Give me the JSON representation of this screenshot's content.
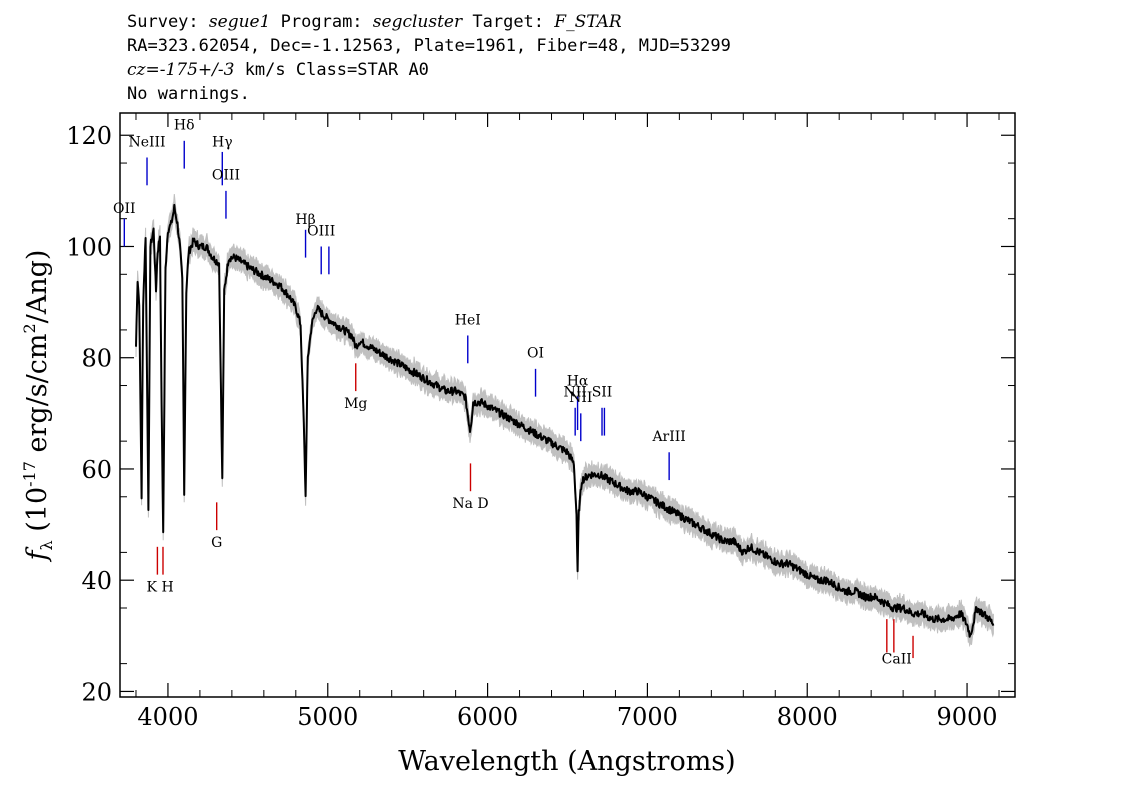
{
  "header": {
    "survey_label": "Survey:",
    "survey": "segue1",
    "program_label": "Program:",
    "program": "segcluster",
    "target_label": "Target:",
    "target": "F_STAR",
    "line2": "RA=323.62054, Dec=-1.12563, Plate=1961, Fiber=48, MJD=53299",
    "cz": "cz=-175+/-3",
    "cz_rest": " km/s Class=STAR A0",
    "line4": "No warnings."
  },
  "chart_data": {
    "type": "line",
    "xlabel": "Wavelength (Angstroms)",
    "ylabel": "f_λ (10^-17 erg/s/cm^2/Ang)",
    "xlim": [
      3700,
      9300
    ],
    "ylim": [
      19,
      124
    ],
    "x_ticks": [
      4000,
      5000,
      6000,
      7000,
      8000,
      9000
    ],
    "y_ticks": [
      20,
      40,
      60,
      80,
      100,
      120
    ],
    "colors": {
      "flux": "#000000",
      "error": "#c0c0c0",
      "emission": "#0000cc",
      "absorption": "#cc0000"
    },
    "series": [
      {
        "points": [
          [
            3800,
            82
          ],
          [
            3810,
            94
          ],
          [
            3820,
            90
          ],
          [
            3835,
            55
          ],
          [
            3845,
            90
          ],
          [
            3860,
            102
          ],
          [
            3878,
            52
          ],
          [
            3890,
            100
          ],
          [
            3910,
            103
          ],
          [
            3925,
            92
          ],
          [
            3935,
            99
          ],
          [
            3950,
            102
          ],
          [
            3960,
            72
          ],
          [
            3970,
            49
          ],
          [
            3985,
            96
          ],
          [
            4000,
            103
          ],
          [
            4020,
            104
          ],
          [
            4040,
            107
          ],
          [
            4060,
            104
          ],
          [
            4075,
            100
          ],
          [
            4090,
            94
          ],
          [
            4102,
            56
          ],
          [
            4115,
            92
          ],
          [
            4130,
            99
          ],
          [
            4160,
            101
          ],
          [
            4200,
            100
          ],
          [
            4240,
            100
          ],
          [
            4280,
            98
          ],
          [
            4320,
            97
          ],
          [
            4340,
            58
          ],
          [
            4352,
            92
          ],
          [
            4380,
            98
          ],
          [
            4420,
            98
          ],
          [
            4470,
            97
          ],
          [
            4520,
            96
          ],
          [
            4580,
            95
          ],
          [
            4640,
            94
          ],
          [
            4700,
            93
          ],
          [
            4760,
            91
          ],
          [
            4800,
            89
          ],
          [
            4830,
            86
          ],
          [
            4850,
            68
          ],
          [
            4861,
            55
          ],
          [
            4875,
            80
          ],
          [
            4900,
            86
          ],
          [
            4930,
            89
          ],
          [
            4960,
            88
          ],
          [
            5000,
            87
          ],
          [
            5050,
            86
          ],
          [
            5100,
            85
          ],
          [
            5150,
            84
          ],
          [
            5175,
            82
          ],
          [
            5200,
            83
          ],
          [
            5260,
            82
          ],
          [
            5320,
            81
          ],
          [
            5380,
            80
          ],
          [
            5440,
            79
          ],
          [
            5500,
            78
          ],
          [
            5560,
            77
          ],
          [
            5620,
            76
          ],
          [
            5680,
            75
          ],
          [
            5740,
            74
          ],
          [
            5800,
            74
          ],
          [
            5860,
            73
          ],
          [
            5890,
            67
          ],
          [
            5900,
            69
          ],
          [
            5910,
            72
          ],
          [
            5960,
            72
          ],
          [
            6020,
            71
          ],
          [
            6080,
            70
          ],
          [
            6140,
            69
          ],
          [
            6200,
            68
          ],
          [
            6260,
            67
          ],
          [
            6320,
            66
          ],
          [
            6380,
            65
          ],
          [
            6440,
            64
          ],
          [
            6500,
            63
          ],
          [
            6540,
            61
          ],
          [
            6556,
            52
          ],
          [
            6563,
            41
          ],
          [
            6570,
            52
          ],
          [
            6590,
            58
          ],
          [
            6640,
            59
          ],
          [
            6700,
            59
          ],
          [
            6760,
            58
          ],
          [
            6820,
            57
          ],
          [
            6880,
            56
          ],
          [
            6940,
            56
          ],
          [
            7000,
            55
          ],
          [
            7060,
            54
          ],
          [
            7120,
            53
          ],
          [
            7180,
            52
          ],
          [
            7240,
            51
          ],
          [
            7300,
            50
          ],
          [
            7360,
            49
          ],
          [
            7420,
            48
          ],
          [
            7480,
            47
          ],
          [
            7540,
            47
          ],
          [
            7600,
            45
          ],
          [
            7640,
            46
          ],
          [
            7700,
            45
          ],
          [
            7760,
            44
          ],
          [
            7820,
            43
          ],
          [
            7880,
            43
          ],
          [
            7940,
            42
          ],
          [
            8000,
            41
          ],
          [
            8060,
            40
          ],
          [
            8120,
            40
          ],
          [
            8180,
            39
          ],
          [
            8240,
            38
          ],
          [
            8300,
            38
          ],
          [
            8360,
            37
          ],
          [
            8420,
            37
          ],
          [
            8480,
            36
          ],
          [
            8540,
            35
          ],
          [
            8600,
            35
          ],
          [
            8660,
            34
          ],
          [
            8720,
            34
          ],
          [
            8780,
            33
          ],
          [
            8840,
            33
          ],
          [
            8900,
            33
          ],
          [
            8960,
            34
          ],
          [
            9000,
            32
          ],
          [
            9020,
            30
          ],
          [
            9060,
            35
          ],
          [
            9100,
            34
          ],
          [
            9140,
            33
          ],
          [
            9165,
            32
          ]
        ]
      }
    ],
    "line_markers": [
      {
        "label": "OII",
        "wavelength": 3727,
        "kind": "emission",
        "y_top": 105,
        "y_bot": 100,
        "label_y": 106
      },
      {
        "label": "NeIII",
        "wavelength": 3869,
        "kind": "emission",
        "y_top": 116,
        "y_bot": 111,
        "label_y": 118
      },
      {
        "label": "Hδ",
        "wavelength": 4102,
        "kind": "emission",
        "y_top": 119,
        "y_bot": 114,
        "label_y": 121
      },
      {
        "label": "Hγ",
        "wavelength": 4340,
        "kind": "emission",
        "y_top": 117,
        "y_bot": 111,
        "label_y": 118
      },
      {
        "label": "OIII",
        "wavelength": 4363,
        "kind": "emission",
        "y_top": 110,
        "y_bot": 105,
        "label_y": 112
      },
      {
        "label": "Hβ",
        "wavelength": 4861,
        "kind": "emission",
        "y_top": 103,
        "y_bot": 98,
        "label_y": 104
      },
      {
        "label": "OIII",
        "wavelength": 4959,
        "kind": "emission",
        "y_top": 100,
        "y_bot": 95,
        "label_y": 102
      },
      {
        "label": "",
        "wavelength": 5007,
        "kind": "emission",
        "y_top": 100,
        "y_bot": 95,
        "label_y": 0
      },
      {
        "label": "HeI",
        "wavelength": 5876,
        "kind": "emission",
        "y_top": 84,
        "y_bot": 79,
        "label_y": 86
      },
      {
        "label": "OI",
        "wavelength": 6300,
        "kind": "emission",
        "y_top": 78,
        "y_bot": 73,
        "label_y": 80
      },
      {
        "label": "NII",
        "wavelength": 6548,
        "kind": "emission",
        "y_top": 71,
        "y_bot": 66,
        "label_y": 73
      },
      {
        "label": "Hα",
        "wavelength": 6563,
        "kind": "emission",
        "y_top": 73,
        "y_bot": 67,
        "label_y": 75
      },
      {
        "label": "NII",
        "wavelength": 6583,
        "kind": "emission",
        "y_top": 70,
        "y_bot": 65,
        "label_y": 72
      },
      {
        "label": "SII",
        "wavelength": 6716,
        "kind": "emission",
        "y_top": 71,
        "y_bot": 66,
        "label_y": 73
      },
      {
        "label": "",
        "wavelength": 6731,
        "kind": "emission",
        "y_top": 71,
        "y_bot": 66,
        "label_y": 0
      },
      {
        "label": "ArIII",
        "wavelength": 7136,
        "kind": "emission",
        "y_top": 63,
        "y_bot": 58,
        "label_y": 65
      },
      {
        "label": "",
        "wavelength": 3934,
        "kind": "absorption",
        "y_top": 46,
        "y_bot": 41,
        "label_y": 0
      },
      {
        "label": "",
        "wavelength": 3969,
        "kind": "absorption",
        "y_top": 46,
        "y_bot": 41,
        "label_y": 0
      },
      {
        "label": "K H",
        "wavelength": 3951,
        "kind": "label",
        "y_top": 0,
        "y_bot": 0,
        "label_y": 38
      },
      {
        "label": "G",
        "wavelength": 4305,
        "kind": "absorption",
        "y_top": 54,
        "y_bot": 49,
        "label_y": 46
      },
      {
        "label": "Mg",
        "wavelength": 5175,
        "kind": "absorption",
        "y_top": 79,
        "y_bot": 74,
        "label_y": 71
      },
      {
        "label": "Na D",
        "wavelength": 5893,
        "kind": "absorption",
        "y_top": 61,
        "y_bot": 56,
        "label_y": 53
      },
      {
        "label": "",
        "wavelength": 8498,
        "kind": "absorption",
        "y_top": 33,
        "y_bot": 27,
        "label_y": 0
      },
      {
        "label": "",
        "wavelength": 8542,
        "kind": "absorption",
        "y_top": 33,
        "y_bot": 27,
        "label_y": 0
      },
      {
        "label": "",
        "wavelength": 8662,
        "kind": "absorption",
        "y_top": 30,
        "y_bot": 26,
        "label_y": 0
      },
      {
        "label": "CaII",
        "wavelength": 8560,
        "kind": "label",
        "y_top": 0,
        "y_bot": 0,
        "label_y": 25
      }
    ]
  }
}
